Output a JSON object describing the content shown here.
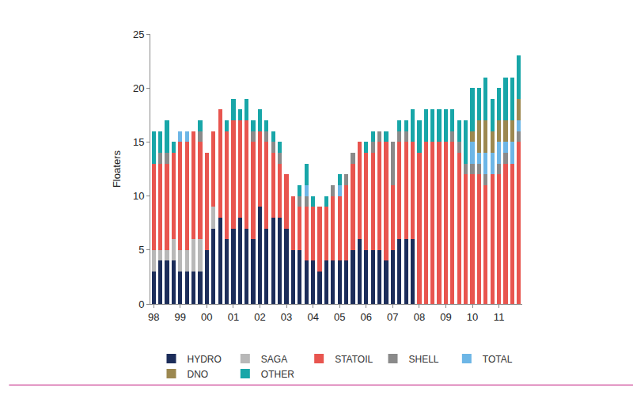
{
  "chart_data": {
    "type": "bar",
    "stacked": true,
    "legend": "bottom",
    "grid": false,
    "y_label": "Floaters",
    "ylim": [
      0,
      25
    ],
    "yticks": [
      0,
      5,
      10,
      15,
      20,
      25
    ],
    "categories": [
      "98",
      null,
      null,
      null,
      "99",
      null,
      null,
      null,
      "00",
      null,
      null,
      null,
      "01",
      null,
      null,
      null,
      "02",
      null,
      null,
      null,
      "03",
      null,
      null,
      null,
      "04",
      null,
      null,
      null,
      "05",
      null,
      null,
      null,
      "06",
      null,
      null,
      null,
      "07",
      null,
      null,
      null,
      "08",
      null,
      null,
      null,
      "09",
      null,
      null,
      null,
      "10",
      null,
      null,
      null,
      "11",
      null,
      null,
      null
    ],
    "series": [
      {
        "name": "HYDRO",
        "color": "#1c2d5a",
        "values": [
          3,
          4,
          4,
          4,
          3,
          3,
          3,
          3,
          5,
          7,
          8,
          6,
          7,
          8,
          7,
          6,
          9,
          7,
          8,
          8,
          7,
          5,
          5,
          4,
          4,
          3,
          4,
          4,
          4,
          4,
          5,
          6,
          5,
          5,
          5,
          4,
          5,
          6,
          6,
          6,
          0,
          0,
          0,
          0,
          0,
          0,
          0,
          0,
          0,
          0,
          0,
          0,
          0,
          0,
          0,
          0
        ]
      },
      {
        "name": "SAGA",
        "color": "#b8b8b8",
        "values": [
          2,
          1,
          1,
          2,
          2,
          2,
          3,
          3,
          0,
          2,
          0,
          0,
          0,
          0,
          0,
          0,
          0,
          0,
          0,
          0,
          0,
          0,
          0,
          0,
          0,
          0,
          0,
          0,
          0,
          0,
          0,
          0,
          0,
          0,
          0,
          0,
          0,
          0,
          0,
          0,
          0,
          0,
          0,
          0,
          0,
          0,
          0,
          0,
          0,
          0,
          0,
          0,
          0,
          0,
          0,
          0
        ]
      },
      {
        "name": "STATOIL",
        "color": "#e8554f",
        "values": [
          8,
          8,
          8,
          8,
          10,
          10,
          10,
          9,
          9,
          7,
          10,
          10,
          10,
          9,
          10,
          9,
          7,
          8,
          6,
          5,
          5,
          5,
          4,
          5,
          5,
          6,
          5,
          6,
          6,
          7,
          8,
          9,
          9,
          9,
          10,
          11,
          6,
          9,
          9,
          9,
          14,
          15,
          15,
          15,
          15,
          15,
          14,
          12,
          12,
          12,
          11,
          12,
          12,
          13,
          13,
          15
        ]
      },
      {
        "name": "SHELL",
        "color": "#8a8a8a",
        "values": [
          0,
          1,
          1,
          0,
          0,
          0,
          0,
          1,
          0,
          0,
          0,
          0,
          0,
          0,
          0,
          1,
          0,
          1,
          1,
          1,
          0,
          0,
          1,
          1,
          0,
          0,
          0,
          1,
          0,
          1,
          1,
          0,
          0,
          1,
          1,
          0,
          4,
          1,
          1,
          0,
          0,
          0,
          0,
          0,
          0,
          1,
          1,
          1,
          1,
          1,
          1,
          0,
          1,
          1,
          0,
          1
        ]
      },
      {
        "name": "TOTAL",
        "color": "#6db6e6",
        "values": [
          0,
          0,
          0,
          0,
          1,
          1,
          0,
          0,
          0,
          0,
          0,
          0,
          0,
          0,
          0,
          0,
          0,
          0,
          0,
          0,
          0,
          0,
          0,
          1,
          0,
          0,
          0,
          0,
          1,
          0,
          0,
          0,
          0,
          0,
          0,
          0,
          0,
          0,
          0,
          0,
          0,
          0,
          0,
          0,
          0,
          0,
          0,
          0,
          2,
          1,
          2,
          2,
          2,
          1,
          2,
          1
        ]
      },
      {
        "name": "DNO",
        "color": "#9c8850",
        "values": [
          0,
          0,
          0,
          0,
          0,
          0,
          0,
          0,
          0,
          0,
          0,
          0,
          0,
          0,
          0,
          0,
          0,
          0,
          0,
          0,
          0,
          0,
          0,
          0,
          0,
          0,
          0,
          0,
          0,
          0,
          0,
          0,
          0,
          0,
          0,
          0,
          0,
          0,
          0,
          0,
          0,
          0,
          0,
          0,
          0,
          0,
          0,
          0,
          1,
          3,
          3,
          2,
          2,
          2,
          2,
          2
        ]
      },
      {
        "name": "OTHER",
        "color": "#18a6a8",
        "values": [
          3,
          2,
          3,
          1,
          0,
          0,
          0,
          1,
          0,
          0,
          0,
          1,
          2,
          1,
          2,
          1,
          2,
          1,
          1,
          1,
          0,
          0,
          1,
          2,
          1,
          0,
          1,
          0,
          1,
          0,
          0,
          0,
          1,
          1,
          0,
          1,
          0,
          1,
          1,
          3,
          3,
          3,
          3,
          3,
          3,
          2,
          2,
          4,
          4,
          3,
          4,
          3,
          3,
          4,
          4,
          4
        ]
      }
    ]
  }
}
